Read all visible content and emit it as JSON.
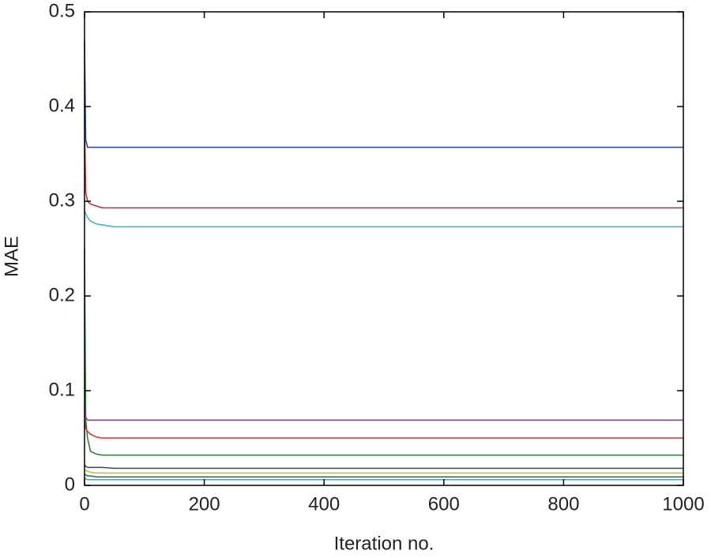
{
  "chart_data": {
    "type": "line",
    "xlabel": "Iteration no.",
    "ylabel": "MAE",
    "x": [
      0,
      2,
      5,
      10,
      20,
      30,
      50,
      1000
    ],
    "series": [
      {
        "color": "#2a3f9c",
        "values": [
          0.47,
          0.365,
          0.357,
          0.357,
          0.357,
          0.357,
          0.357,
          0.357
        ]
      },
      {
        "color": "#cc2a2a",
        "values": [
          0.385,
          0.31,
          0.3,
          0.297,
          0.295,
          0.293,
          0.293,
          0.293
        ]
      },
      {
        "color": "#2fbcbc",
        "values": [
          0.29,
          0.287,
          0.283,
          0.279,
          0.276,
          0.275,
          0.273,
          0.273
        ]
      },
      {
        "color": "#2a7a3c",
        "values": [
          0.25,
          0.07,
          0.05,
          0.036,
          0.033,
          0.032,
          0.032,
          0.032
        ]
      },
      {
        "color": "#8c3f8c",
        "values": [
          0.085,
          0.072,
          0.069,
          0.069,
          0.069,
          0.069,
          0.069,
          0.069
        ]
      },
      {
        "color": "#d0302a",
        "values": [
          0.068,
          0.06,
          0.057,
          0.054,
          0.051,
          0.05,
          0.05,
          0.05
        ]
      },
      {
        "color": "#3a4a7a",
        "values": [
          0.022,
          0.02,
          0.019,
          0.019,
          0.019,
          0.019,
          0.018,
          0.018
        ]
      },
      {
        "color": "#d0b82a",
        "values": [
          0.017,
          0.016,
          0.015,
          0.014,
          0.013,
          0.013,
          0.013,
          0.013
        ]
      },
      {
        "color": "#2a6a5a",
        "values": [
          0.012,
          0.011,
          0.01,
          0.01,
          0.009,
          0.009,
          0.009,
          0.009
        ]
      },
      {
        "color": "#3ab0a0",
        "values": [
          0.008,
          0.007,
          0.006,
          0.006,
          0.006,
          0.006,
          0.006,
          0.006
        ]
      }
    ],
    "xlim": [
      0,
      1000
    ],
    "xticks": [
      0,
      200,
      400,
      600,
      800,
      1000
    ],
    "ylim": [
      0,
      0.5
    ],
    "yticks": [
      0,
      0.1,
      0.2,
      0.3,
      0.4,
      0.5
    ]
  }
}
